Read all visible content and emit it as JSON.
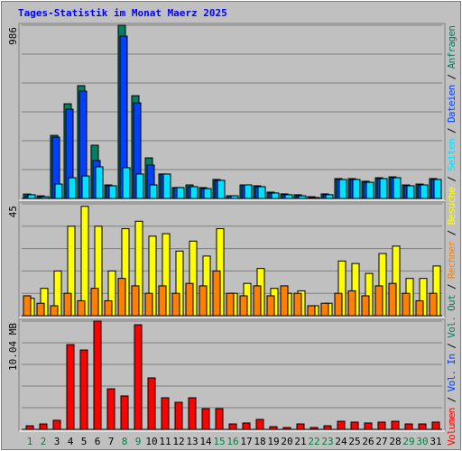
{
  "chart_data": [
    {
      "type": "bar",
      "title": "Tages-Statistik im Monat Maerz 2025",
      "legend_separator": " / ",
      "ylim": [
        0,
        986
      ],
      "yticks": [
        986
      ],
      "series": [
        {
          "name": "Anfragen",
          "color": "#008060",
          "values": [
            25,
            15,
            359,
            539,
            642,
            303,
            77,
            986,
            585,
            231,
            139,
            62,
            77,
            62,
            108,
            15,
            77,
            72,
            36,
            26,
            21,
            10,
            26,
            113,
            113,
            98,
            118,
            123,
            77,
            82,
            113
          ]
        },
        {
          "name": "Dateien",
          "color": "#0040ff",
          "values": [
            15,
            10,
            349,
            508,
            611,
            216,
            72,
            924,
            544,
            190,
            139,
            62,
            67,
            56,
            103,
            15,
            77,
            67,
            31,
            21,
            15,
            5,
            21,
            108,
            108,
            92,
            113,
            118,
            72,
            77,
            108
          ]
        },
        {
          "name": "Seiten",
          "color": "#00e0ff",
          "values": [
            21,
            10,
            82,
            118,
            128,
            180,
            72,
            175,
            139,
            77,
            139,
            62,
            67,
            56,
            103,
            15,
            77,
            67,
            31,
            21,
            15,
            5,
            21,
            108,
            108,
            92,
            113,
            118,
            72,
            77,
            108
          ]
        }
      ]
    },
    {
      "type": "bar",
      "ylim": [
        0,
        45
      ],
      "yticks": [
        45
      ],
      "series": [
        {
          "name": "Besuche",
          "color": "#ffff00",
          "values": [
            7,
            11,
            18,
            36,
            44,
            36,
            18,
            35,
            38,
            32,
            33,
            26,
            30,
            24,
            35,
            9,
            13,
            19,
            11,
            9,
            10,
            4,
            5,
            22,
            21,
            17,
            25,
            28,
            15,
            15,
            20
          ]
        },
        {
          "name": "Rechner",
          "color": "#ff8000",
          "values": [
            8,
            5,
            4,
            9,
            6,
            11,
            6,
            15,
            12,
            9,
            12,
            9,
            13,
            12,
            18,
            9,
            8,
            12,
            8,
            12,
            9,
            4,
            5,
            9,
            10,
            8,
            12,
            13,
            9,
            6,
            9
          ]
        }
      ]
    },
    {
      "type": "bar",
      "ylim": [
        0,
        10.04
      ],
      "yticks": [
        {
          "value": 10.04,
          "label": "10.04 MB"
        }
      ],
      "categories": [
        "1",
        "2",
        "3",
        "4",
        "5",
        "6",
        "7",
        "8",
        "9",
        "10",
        "11",
        "12",
        "13",
        "14",
        "15",
        "16",
        "17",
        "18",
        "19",
        "20",
        "21",
        "22",
        "23",
        "24",
        "25",
        "26",
        "27",
        "28",
        "29",
        "30",
        "31"
      ],
      "category_colors": [
        "#008040",
        "#008040",
        "#000000",
        "#000000",
        "#000000",
        "#000000",
        "#000000",
        "#008040",
        "#008040",
        "#000000",
        "#000000",
        "#000000",
        "#000000",
        "#000000",
        "#008040",
        "#008040",
        "#000000",
        "#000000",
        "#000000",
        "#000000",
        "#000000",
        "#008040",
        "#008040",
        "#000000",
        "#000000",
        "#000000",
        "#000000",
        "#000000",
        "#008040",
        "#008040",
        "#000000"
      ],
      "series": [
        {
          "name": "Volumen",
          "color": "#ff0000",
          "values": [
            0.33,
            0.5,
            0.84,
            7.86,
            7.36,
            10.04,
            3.76,
            3.1,
            9.7,
            4.77,
            2.93,
            2.51,
            2.93,
            1.92,
            1.92,
            0.5,
            0.59,
            0.92,
            0.25,
            0.17,
            0.5,
            0.17,
            0.33,
            0.75,
            0.67,
            0.59,
            0.67,
            0.75,
            0.5,
            0.5,
            0.67
          ]
        }
      ],
      "legend_extra": [
        {
          "name": "Vol. In",
          "color": "#0040ff"
        },
        {
          "name": "Vol. Out",
          "color": "#008060"
        }
      ]
    }
  ]
}
